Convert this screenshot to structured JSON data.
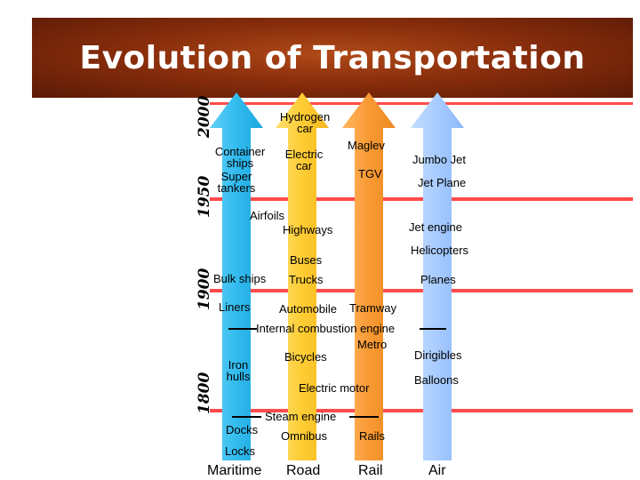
{
  "title": "Evolution of Transportation",
  "years": {
    "y2000": "2000",
    "y1950": "1950",
    "y1900": "1900",
    "y1800": "1800"
  },
  "colors": {
    "maritime": "#33bbee",
    "road": "#ffcc33",
    "rail": "#f89a34",
    "air": "#a8cbff",
    "banner": "#8a2e0c",
    "stripe": "#ff4a4a"
  },
  "modes": {
    "maritime": "Maritime",
    "road": "Road",
    "rail": "Rail",
    "air": "Air"
  },
  "labels": {
    "hydrogen_car": "Hydrogen car",
    "container_ships": "Container ships",
    "super_tankers": "Super tankers",
    "electric_car": "Electric car",
    "maglev": "Maglev",
    "tgv": "TGV",
    "jumbo_jet": "Jumbo Jet",
    "jet_plane": "Jet Plane",
    "airfoils": "Airfoils",
    "highways": "Highways",
    "jet_engine": "Jet engine",
    "helicopters": "Helicopters",
    "buses": "Buses",
    "bulk_ships": "Bulk ships",
    "trucks": "Trucks",
    "planes": "Planes",
    "liners": "Liners",
    "automobile": "Automobile",
    "tramway": "Tramway",
    "internal_combustion": "Internal combustion engine",
    "metro": "Metro",
    "bicycles": "Bicycles",
    "dirigibles": "Dirigibles",
    "iron_hulls": "Iron hulls",
    "balloons": "Balloons",
    "electric_motor": "Electric motor",
    "steam_engine": "Steam engine",
    "docks": "Docks",
    "omnibus": "Omnibus",
    "rails": "Rails",
    "locks": "Locks"
  }
}
